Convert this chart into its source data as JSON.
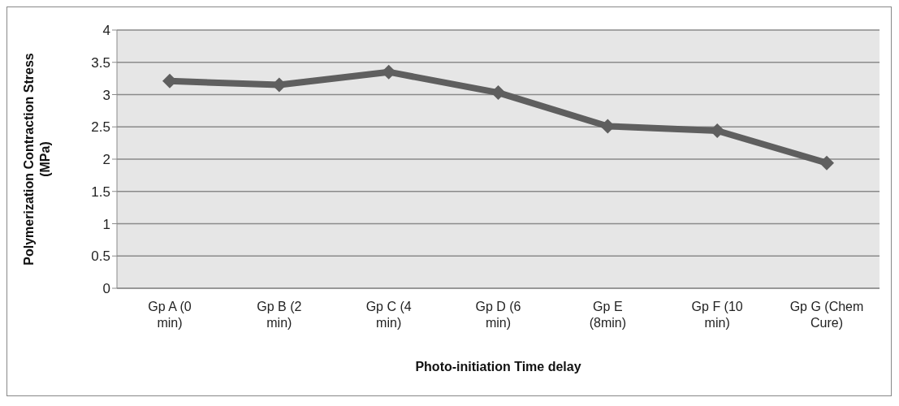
{
  "chart_data": {
    "type": "line",
    "xlabel": "Photo-initiation Time delay",
    "ylabel": "Polymerization Contraction Stress (MPa)",
    "categories": [
      "Gp A (0 min)",
      "Gp B (2 min)",
      "Gp C (4 min)",
      "Gp D (6 min)",
      "Gp E (8min)",
      "Gp F (10 min)",
      "Gp G (Chem Cure)"
    ],
    "series": [
      {
        "color": "#5f5f5f",
        "values": [
          3.21,
          3.15,
          3.35,
          3.03,
          2.51,
          2.44,
          1.94
        ]
      }
    ],
    "ylim": [
      0,
      4
    ],
    "yticks": [
      0,
      0.5,
      1,
      1.5,
      2,
      2.5,
      3,
      3.5,
      4
    ],
    "grid": "y",
    "legend": false,
    "marker": "diamond",
    "line_style": "solid"
  }
}
